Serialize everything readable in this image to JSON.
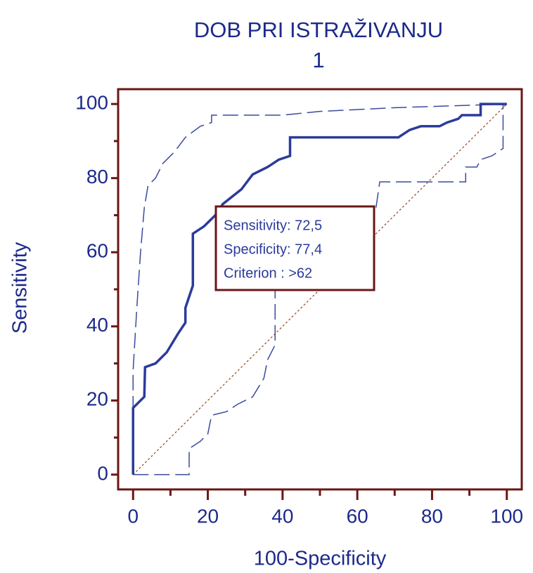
{
  "chart_data": {
    "type": "line",
    "title": "DOB  PRI ISTRAŽIVANJU",
    "subtitle": "1",
    "x_label": "100-Specificity",
    "y_label": "Sensitivity",
    "xlim": [
      -4,
      104
    ],
    "ylim": [
      -4,
      104
    ],
    "xticks": [
      0,
      20,
      40,
      60,
      80,
      100
    ],
    "yticks": [
      0,
      20,
      40,
      60,
      80,
      100
    ],
    "xminorticks": [
      10,
      30,
      50,
      70,
      90
    ],
    "yminorticks": [
      10,
      30,
      50,
      70,
      90
    ],
    "series": [
      {
        "color": "#a0522d",
        "style": "dotted",
        "width": 1.3,
        "x": [
          0,
          100
        ],
        "values": [
          0,
          100
        ]
      },
      {
        "color": "#3b4a9e",
        "style": "dashed",
        "width": 1.5,
        "x": [
          0,
          0,
          1,
          2,
          3,
          4,
          6,
          8,
          11,
          14,
          18,
          21,
          21,
          40,
          50,
          70,
          100
        ],
        "values": [
          0,
          28,
          45,
          60,
          72,
          78,
          80,
          84,
          87,
          91,
          94,
          95,
          97,
          97,
          98,
          99,
          100
        ]
      },
      {
        "color": "#3b4a9e",
        "style": "dashed",
        "width": 1.5,
        "x": [
          0,
          15,
          15,
          18,
          20,
          21,
          25,
          28,
          32,
          35,
          36,
          38,
          38,
          40,
          42,
          44,
          47,
          55,
          62,
          65,
          66,
          80,
          89,
          89,
          92,
          93,
          96,
          99,
          99,
          100
        ],
        "values": [
          0,
          0,
          7,
          9,
          11,
          16,
          17,
          19,
          21,
          26,
          31,
          35,
          50,
          55,
          58,
          60,
          62,
          64,
          67,
          72,
          79,
          79,
          79,
          83,
          83,
          85,
          86,
          88,
          100,
          100
        ]
      },
      {
        "color": "#2b3b9a",
        "style": "solid",
        "width": 3.5,
        "x": [
          0,
          0,
          3,
          3.2,
          6,
          9,
          12,
          14,
          14,
          16,
          16,
          19,
          22,
          24,
          29,
          32,
          36,
          39,
          42,
          42,
          71,
          74,
          77,
          82,
          84,
          87,
          88,
          93,
          93,
          100
        ],
        "values": [
          0,
          18,
          21,
          29,
          30,
          33,
          38,
          41,
          45,
          51,
          65,
          67,
          70,
          73,
          77,
          81,
          83,
          85,
          86,
          91,
          91,
          93,
          94,
          94,
          95,
          96,
          97,
          97,
          100,
          100
        ]
      }
    ],
    "annotation": [
      "Sensitivity: 72,5",
      "Specificity: 77,4",
      "Criterion : >62"
    ],
    "frame_color": "#6b1616"
  }
}
